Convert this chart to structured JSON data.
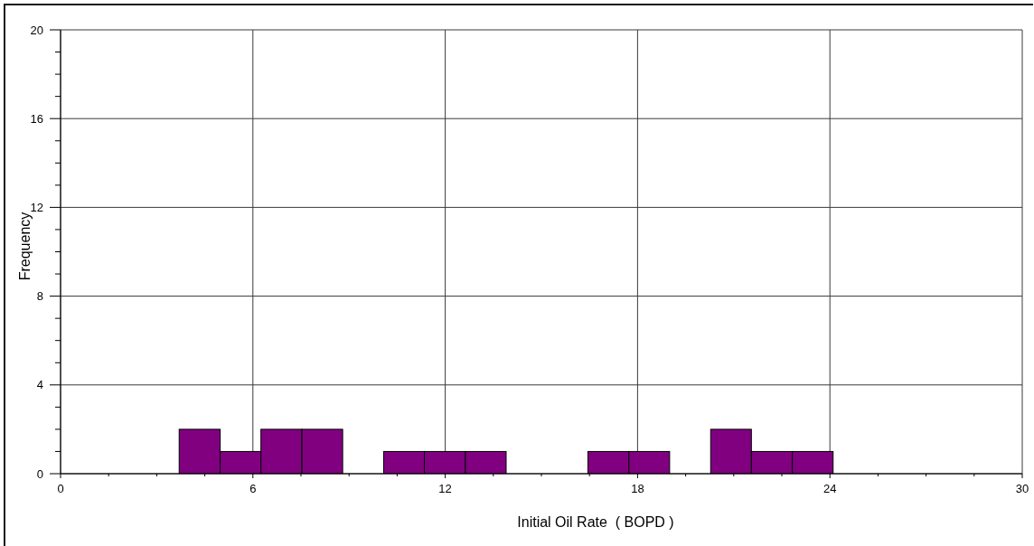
{
  "chart_data": {
    "type": "histogram",
    "xlabel": "Initial Oil Rate  ( BOPD )",
    "ylabel": "Frequency",
    "bins": [
      3.7,
      4.98,
      6.25,
      7.53,
      8.8,
      10.08,
      11.35,
      12.63,
      13.9,
      15.18,
      16.45,
      17.73,
      19.0,
      20.28,
      21.55,
      22.83,
      24.1
    ],
    "values": [
      2,
      1,
      2,
      2,
      0,
      1,
      1,
      1,
      0,
      0,
      1,
      1,
      0,
      2,
      1,
      1
    ],
    "color": "#800080",
    "xlim": [
      0,
      30
    ],
    "xticks": [
      0,
      {
        "value": 1.5,
        "label": null
      },
      {
        "value": 3,
        "label": null
      },
      {
        "value": 4.5,
        "label": null
      },
      6,
      {
        "value": 7.5,
        "label": null
      },
      {
        "value": 9,
        "label": null
      },
      {
        "value": 10.5,
        "label": null
      },
      12,
      {
        "value": 13.5,
        "label": null
      },
      {
        "value": 15,
        "label": null
      },
      {
        "value": 16.5,
        "label": null
      },
      18,
      {
        "value": 19.5,
        "label": null
      },
      {
        "value": 21,
        "label": null
      },
      {
        "value": 22.5,
        "label": null
      },
      24,
      {
        "value": 25.5,
        "label": null
      },
      {
        "value": 27,
        "label": null
      },
      {
        "value": 28.5,
        "label": null
      },
      30
    ],
    "ylim": [
      0,
      20
    ],
    "yticks": [
      0,
      {
        "value": 1,
        "label": null
      },
      {
        "value": 2,
        "label": null
      },
      {
        "value": 3,
        "label": null
      },
      4,
      {
        "value": 5,
        "label": null
      },
      {
        "value": 6,
        "label": null
      },
      {
        "value": 7,
        "label": null
      },
      8,
      {
        "value": 9,
        "label": null
      },
      {
        "value": 10,
        "label": null
      },
      {
        "value": 11,
        "label": null
      },
      12,
      {
        "value": 13,
        "label": null
      },
      {
        "value": 14,
        "label": null
      },
      {
        "value": 15,
        "label": null
      },
      16,
      {
        "value": 17,
        "label": null
      },
      {
        "value": 18,
        "label": null
      },
      {
        "value": 19,
        "label": null
      },
      20
    ],
    "grid": true
  }
}
